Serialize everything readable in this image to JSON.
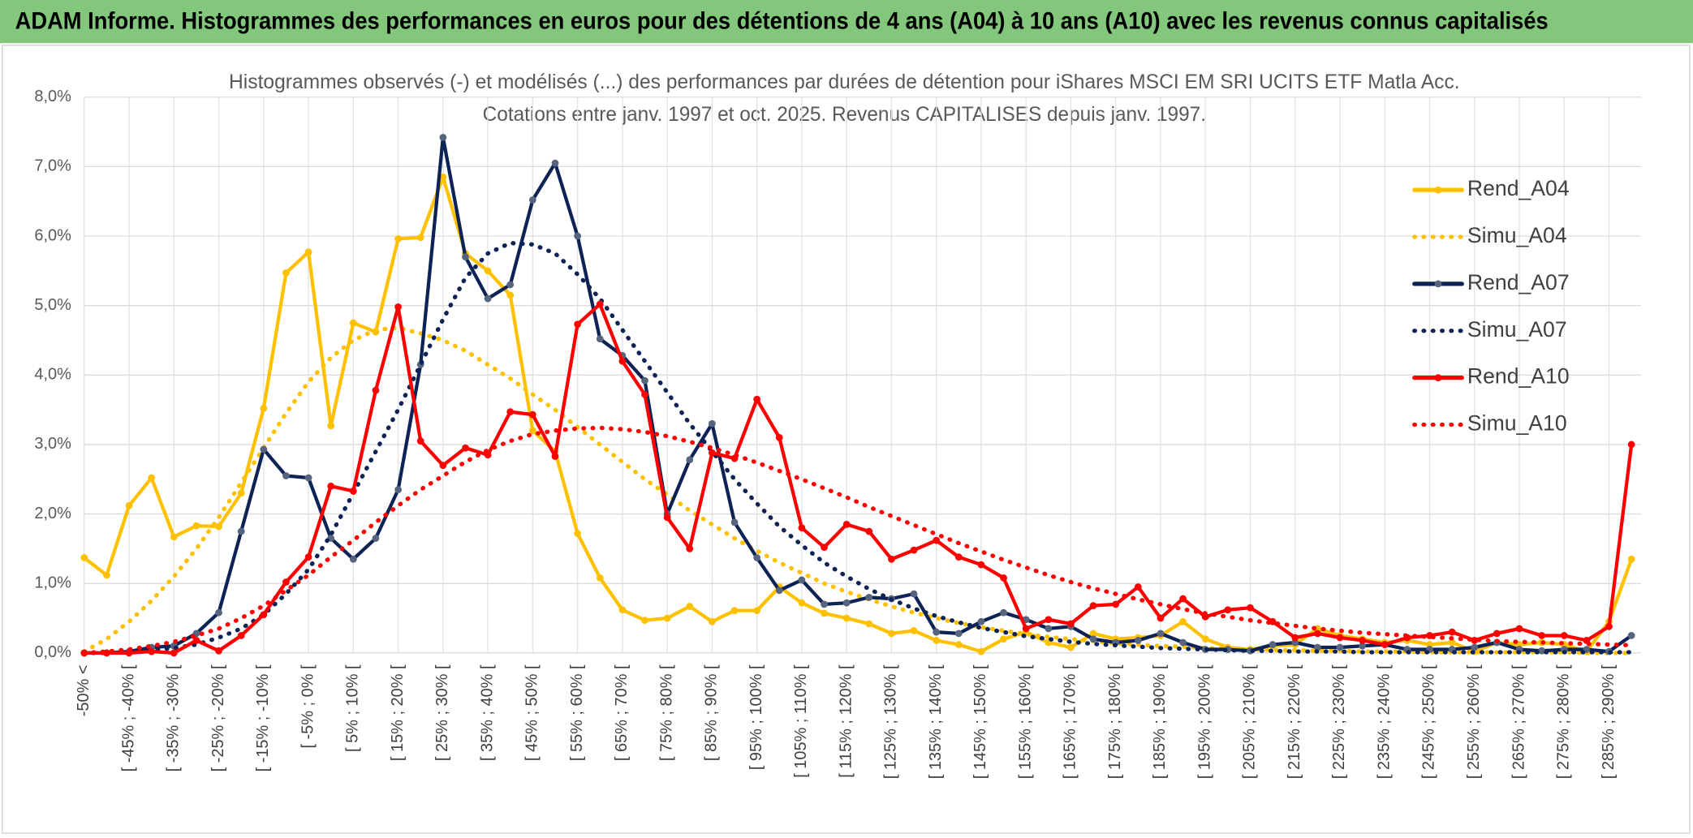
{
  "chart_data": {
    "type": "line",
    "title": "ADAM Informe. Histogrammes des performances en euros pour des détentions de 4 ans (A04) à 10 ans (A10) avec les revenus connus capitalisés",
    "subtitle": [
      "Histogrammes observés (-) et modélisés (...) des performances par durées de détention pour iShares MSCI EM SRI UCITS ETF Matla Acc.",
      "Cotations entre janv. 1997 et oct. 2025. Revenus CAPITALISES depuis janv. 1997."
    ],
    "categories": [
      "-50% <",
      null,
      "[ -45% ; -40% [",
      null,
      "[ -35% ; -30% [",
      null,
      "[ -25% ; -20% [",
      null,
      "[ -15% ; -10% [",
      null,
      "[ -5% ; 0% [",
      null,
      "[ 5% ; 10% [",
      null,
      "[ 15% ; 20% [",
      null,
      "[ 25% ; 30% [",
      null,
      "[ 35% ; 40% [",
      null,
      "[ 45% ; 50% [",
      null,
      "[ 55% ; 60% [",
      null,
      "[ 65% ; 70% [",
      null,
      "[ 75% ; 80% [",
      null,
      "[ 85% ; 90% [",
      null,
      "[ 95% ; 100% [",
      null,
      "[ 105% ; 110% [",
      null,
      "[ 115% ; 120% [",
      null,
      "[ 125% ; 130% [",
      null,
      "[ 135% ; 140% [",
      null,
      "[ 145% ; 150% [",
      null,
      "[ 155% ; 160% [",
      null,
      "[ 165% ; 170% [",
      null,
      "[ 175% ; 180% [",
      null,
      "[ 185% ; 190% [",
      null,
      "[ 195% ; 200% [",
      null,
      "[ 205% ; 210% [",
      null,
      "[ 215% ; 220% [",
      null,
      "[ 225% ; 230% [",
      null,
      "[ 235% ; 240% [",
      null,
      "[ 245% ; 250% [",
      null,
      "[ 255% ; 260% [",
      null,
      "[ 265% ; 270% [",
      null,
      "[ 275% ; 280% [",
      null,
      "[ 285% ; 290% [",
      null
    ],
    "ylim": [
      0,
      8
    ],
    "yticks": [
      {
        "value": 0,
        "label": "0,0%"
      },
      {
        "value": 1,
        "label": "1,0%"
      },
      {
        "value": 2,
        "label": "2,0%"
      },
      {
        "value": 3,
        "label": "3,0%"
      },
      {
        "value": 4,
        "label": "4,0%"
      },
      {
        "value": 5,
        "label": "5,0%"
      },
      {
        "value": 6,
        "label": "6,0%"
      },
      {
        "value": 7,
        "label": "7,0%"
      },
      {
        "value": 8,
        "label": "8,0%"
      }
    ],
    "grid": true,
    "legend": "right",
    "series": [
      {
        "name": "Rend_A04",
        "color": "#ffc000",
        "style": "solid",
        "markers": true,
        "marker_color": "#ffc000",
        "values": [
          1.37,
          1.12,
          2.12,
          2.52,
          1.67,
          1.83,
          1.82,
          2.3,
          3.52,
          5.47,
          5.77,
          3.27,
          4.75,
          4.62,
          5.96,
          5.98,
          6.85,
          5.75,
          5.5,
          5.15,
          3.2,
          2.9,
          1.72,
          1.08,
          0.62,
          0.47,
          0.5,
          0.67,
          0.45,
          0.61,
          0.61,
          0.95,
          0.72,
          0.57,
          0.5,
          0.42,
          0.28,
          0.32,
          0.18,
          0.12,
          0.02,
          0.2,
          0.3,
          0.15,
          0.08,
          0.28,
          0.2,
          0.22,
          0.25,
          0.45,
          0.2,
          0.08,
          0.05,
          0.1,
          0.12,
          0.35,
          0.25,
          0.2,
          0.15,
          0.18,
          0.12,
          0.15,
          0.02,
          0.15,
          0.12,
          0.15,
          0.12,
          0.02,
          0.45,
          1.35
        ]
      },
      {
        "name": "Simu_A04",
        "color": "#ffc000",
        "style": "dotted",
        "markers": false,
        "values": [
          0.02,
          0.2,
          0.45,
          0.75,
          1.1,
          1.5,
          1.95,
          2.45,
          2.95,
          3.45,
          3.9,
          4.25,
          4.5,
          4.65,
          4.68,
          4.6,
          4.5,
          4.35,
          4.15,
          3.95,
          3.72,
          3.5,
          3.25,
          3.0,
          2.75,
          2.5,
          2.28,
          2.05,
          1.85,
          1.65,
          1.47,
          1.3,
          1.15,
          1.0,
          0.88,
          0.77,
          0.67,
          0.58,
          0.5,
          0.43,
          0.37,
          0.32,
          0.27,
          0.23,
          0.2,
          0.17,
          0.14,
          0.12,
          0.1,
          0.09,
          0.07,
          0.06,
          0.05,
          0.04,
          0.04,
          0.03,
          0.03,
          0.02,
          0.02,
          0.02,
          0.01,
          0.01,
          0.01,
          0.01,
          0.01,
          0.01,
          0.01,
          0,
          0,
          0
        ]
      },
      {
        "name": "Rend_A07",
        "color": "#0d2356",
        "style": "solid",
        "markers": true,
        "marker_color": "#56647e",
        "values": [
          0,
          0,
          0.02,
          0.08,
          0.1,
          0.28,
          0.58,
          1.75,
          2.93,
          2.55,
          2.52,
          1.65,
          1.35,
          1.65,
          2.35,
          4.15,
          7.42,
          5.7,
          5.1,
          5.3,
          6.52,
          7.05,
          6.0,
          4.52,
          4.28,
          3.92,
          2.0,
          2.78,
          3.3,
          1.88,
          1.37,
          0.9,
          1.05,
          0.7,
          0.72,
          0.8,
          0.78,
          0.85,
          0.3,
          0.28,
          0.45,
          0.58,
          0.48,
          0.35,
          0.38,
          0.2,
          0.15,
          0.18,
          0.28,
          0.15,
          0.05,
          0.05,
          0.03,
          0.12,
          0.15,
          0.08,
          0.08,
          0.1,
          0.12,
          0.05,
          0.05,
          0.05,
          0.08,
          0.15,
          0.05,
          0.03,
          0.05,
          0.05,
          0.02,
          0.25
        ]
      },
      {
        "name": "Simu_A07",
        "color": "#0d2356",
        "style": "dotted",
        "markers": false,
        "values": [
          0,
          0,
          0.02,
          0.04,
          0.07,
          0.12,
          0.22,
          0.35,
          0.55,
          0.85,
          1.2,
          1.7,
          2.3,
          2.9,
          3.5,
          4.15,
          4.8,
          5.4,
          5.75,
          5.9,
          5.88,
          5.75,
          5.45,
          5.1,
          4.65,
          4.2,
          3.75,
          3.3,
          2.9,
          2.5,
          2.15,
          1.82,
          1.55,
          1.3,
          1.1,
          0.92,
          0.77,
          0.64,
          0.53,
          0.44,
          0.36,
          0.3,
          0.24,
          0.2,
          0.16,
          0.13,
          0.11,
          0.09,
          0.07,
          0.06,
          0.05,
          0.04,
          0.03,
          0.03,
          0.02,
          0.02,
          0.02,
          0.01,
          0.01,
          0.01,
          0.01,
          0.01,
          0.01,
          0.01,
          0.01,
          0.01,
          0.01,
          0.01,
          0.01,
          0.01
        ]
      },
      {
        "name": "Rend_A10",
        "color": "#ff0000",
        "style": "solid",
        "markers": true,
        "marker_color": "#ff0000",
        "values": [
          0,
          0,
          0,
          0.02,
          0,
          0.18,
          0.03,
          0.25,
          0.55,
          1.02,
          1.38,
          2.4,
          2.33,
          3.78,
          4.98,
          3.05,
          2.7,
          2.95,
          2.85,
          3.47,
          3.43,
          2.83,
          4.73,
          5.02,
          4.2,
          3.72,
          1.95,
          1.5,
          2.88,
          2.8,
          3.65,
          3.1,
          1.8,
          1.52,
          1.85,
          1.75,
          1.35,
          1.48,
          1.62,
          1.38,
          1.27,
          1.08,
          0.35,
          0.48,
          0.42,
          0.68,
          0.7,
          0.95,
          0.5,
          0.78,
          0.52,
          0.62,
          0.65,
          0.45,
          0.22,
          0.28,
          0.22,
          0.18,
          0.12,
          0.22,
          0.25,
          0.3,
          0.18,
          0.28,
          0.35,
          0.25,
          0.25,
          0.18,
          0.38,
          3.0
        ]
      },
      {
        "name": "Simu_A10",
        "color": "#ff0000",
        "style": "dotted",
        "markers": false,
        "values": [
          0,
          0.02,
          0.05,
          0.1,
          0.16,
          0.25,
          0.35,
          0.5,
          0.68,
          0.9,
          1.12,
          1.38,
          1.62,
          1.88,
          2.12,
          2.35,
          2.55,
          2.75,
          2.92,
          3.05,
          3.15,
          3.2,
          3.23,
          3.24,
          3.22,
          3.18,
          3.12,
          3.04,
          2.95,
          2.85,
          2.74,
          2.62,
          2.5,
          2.37,
          2.24,
          2.1,
          1.97,
          1.84,
          1.71,
          1.58,
          1.46,
          1.34,
          1.23,
          1.12,
          1.02,
          0.93,
          0.85,
          0.77,
          0.7,
          0.63,
          0.57,
          0.52,
          0.47,
          0.43,
          0.39,
          0.35,
          0.32,
          0.29,
          0.27,
          0.25,
          0.23,
          0.21,
          0.19,
          0.17,
          0.16,
          0.15,
          0.14,
          0.13,
          0.12,
          0.11
        ]
      }
    ]
  }
}
